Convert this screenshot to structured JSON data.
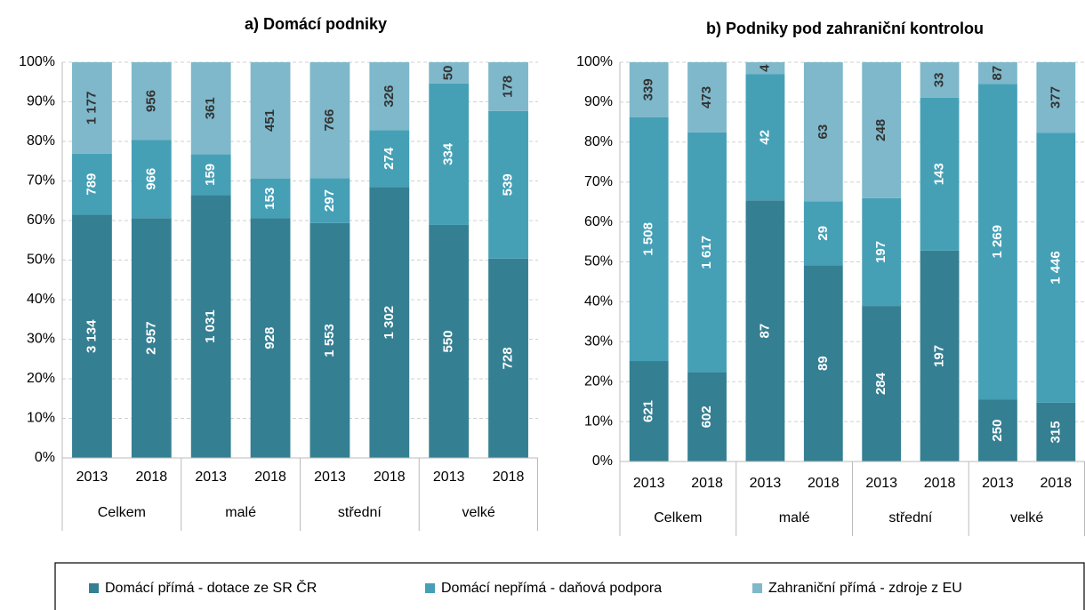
{
  "chart_data": [
    {
      "type": "bar",
      "stacked": "percent",
      "title": "a) Domácí podniky",
      "categories": [
        "2013",
        "2018",
        "2013",
        "2018",
        "2013",
        "2018",
        "2013",
        "2018"
      ],
      "groups": [
        "Celkem",
        "malé",
        "střední",
        "velké"
      ],
      "ylim": [
        0,
        100
      ],
      "yticks": [
        {
          "value": 0,
          "label": "0%"
        },
        {
          "value": 10,
          "label": "10%"
        },
        {
          "value": 20,
          "label": "20%"
        },
        {
          "value": 30,
          "label": "30%"
        },
        {
          "value": 40,
          "label": "40%"
        },
        {
          "value": 50,
          "label": "50%"
        },
        {
          "value": 60,
          "label": "60%"
        },
        {
          "value": 70,
          "label": "70%"
        },
        {
          "value": 80,
          "label": "80%"
        },
        {
          "value": 90,
          "label": "90%"
        },
        {
          "value": 100,
          "label": "100%"
        }
      ],
      "grid": true,
      "series": [
        {
          "name": "Domácí přímá - dotace ze SR ČR",
          "color": "#357f92",
          "values": [
            3134,
            2957,
            1031,
            928,
            1553,
            1302,
            550,
            728
          ],
          "value_labels": [
            "3 134",
            "2 957",
            "1 031",
            "928",
            "1 553",
            "1 302",
            "550",
            "728"
          ]
        },
        {
          "name": "Domácí nepřímá - daňová podpora",
          "color": "#45a0b6",
          "values": [
            789,
            966,
            159,
            153,
            297,
            274,
            334,
            539
          ],
          "value_labels": [
            "789",
            "966",
            "159",
            "153",
            "297",
            "274",
            "334",
            "539"
          ]
        },
        {
          "name": "Zahraniční přímá - zdroje z EU",
          "color": "#7eb8ca",
          "values": [
            1177,
            956,
            361,
            451,
            766,
            326,
            50,
            178
          ],
          "value_labels": [
            "1 177",
            "956",
            "361",
            "451",
            "766",
            "326",
            "50",
            "178"
          ]
        }
      ]
    },
    {
      "type": "bar",
      "stacked": "percent",
      "title": "b) Podniky pod zahraniční kontrolou",
      "categories": [
        "2013",
        "2018",
        "2013",
        "2018",
        "2013",
        "2018",
        "2013",
        "2018"
      ],
      "groups": [
        "Celkem",
        "malé",
        "střední",
        "velké"
      ],
      "ylim": [
        0,
        100
      ],
      "yticks": [
        {
          "value": 0,
          "label": "0%"
        },
        {
          "value": 10,
          "label": "10%"
        },
        {
          "value": 20,
          "label": "20%"
        },
        {
          "value": 30,
          "label": "30%"
        },
        {
          "value": 40,
          "label": "40%"
        },
        {
          "value": 50,
          "label": "50%"
        },
        {
          "value": 60,
          "label": "60%"
        },
        {
          "value": 70,
          "label": "70%"
        },
        {
          "value": 80,
          "label": "80%"
        },
        {
          "value": 90,
          "label": "90%"
        },
        {
          "value": 100,
          "label": "100%"
        }
      ],
      "grid": true,
      "series": [
        {
          "values": [
            621,
            602,
            87,
            89,
            284,
            197,
            250,
            315
          ],
          "value_labels": [
            "621",
            "602",
            "87",
            "89",
            "284",
            "197",
            "250",
            "315"
          ]
        },
        {
          "values": [
            1508,
            1617,
            42,
            29,
            197,
            143,
            1269,
            1446
          ],
          "value_labels": [
            "1 508",
            "1 617",
            "42",
            "29",
            "197",
            "143",
            "1 269",
            "1 446"
          ]
        },
        {
          "values": [
            339,
            473,
            4,
            63,
            248,
            33,
            87,
            377
          ],
          "value_labels": [
            "339",
            "473",
            "4",
            "63",
            "248",
            "33",
            "87",
            "377"
          ]
        }
      ]
    }
  ]
}
